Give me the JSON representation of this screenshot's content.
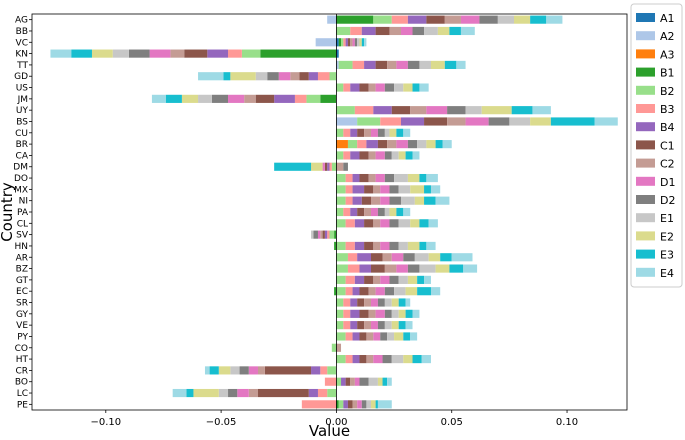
{
  "chart_data": {
    "type": "bar",
    "orientation": "horizontal",
    "stacked": true,
    "xlabel": "Value",
    "ylabel": "Country",
    "xlim": [
      -0.132,
      0.126
    ],
    "xticks": [
      -0.1,
      -0.05,
      0.0,
      0.05,
      0.1
    ],
    "xtick_labels": [
      "−0.10",
      "−0.05",
      "0.00",
      "0.05",
      "0.10"
    ],
    "zero_line": true,
    "grid": false,
    "legend_position": "outside-right",
    "categories": [
      "AG",
      "BB",
      "VC",
      "KN",
      "TT",
      "GD",
      "US",
      "JM",
      "UY",
      "BS",
      "CU",
      "BR",
      "CA",
      "DM",
      "DO",
      "MX",
      "NI",
      "PA",
      "CL",
      "SV",
      "HN",
      "AR",
      "BZ",
      "GT",
      "EC",
      "SR",
      "GY",
      "VE",
      "PY",
      "CO",
      "HT",
      "CR",
      "BO",
      "LC",
      "PE"
    ],
    "series": [
      {
        "name": "A1",
        "color": "#1f77b4",
        "values": [
          0,
          0,
          0.001,
          0.001,
          0,
          0,
          0,
          0,
          0,
          0,
          0,
          0,
          0,
          0,
          0,
          0,
          0,
          0,
          0,
          0,
          0,
          0,
          0,
          0,
          0,
          0,
          0,
          0,
          0,
          0,
          0,
          0,
          0,
          0,
          0
        ]
      },
      {
        "name": "A2",
        "color": "#aec7e8",
        "values": [
          -0.004,
          0,
          -0.009,
          0,
          0.001,
          0,
          0,
          0,
          0,
          0.009,
          0,
          0,
          0,
          0,
          0,
          0,
          0,
          0,
          0,
          0,
          0,
          0,
          0,
          0,
          0,
          0,
          0,
          0,
          0,
          0,
          0,
          0,
          0,
          0,
          0
        ]
      },
      {
        "name": "A3",
        "color": "#ff7f0e",
        "values": [
          0,
          0,
          0,
          0,
          0,
          0,
          0,
          0,
          0,
          0,
          0,
          0.005,
          0,
          0,
          0,
          0,
          0,
          0,
          0,
          0,
          0,
          0,
          0,
          0,
          0,
          0,
          0,
          0,
          0,
          0,
          0,
          0,
          0,
          0,
          0
        ]
      },
      {
        "name": "B1",
        "color": "#2ca02c",
        "values": [
          0.016,
          0,
          0.001,
          -0.033,
          0,
          0,
          0,
          -0.007,
          0,
          0,
          0,
          0,
          0,
          0,
          0,
          0,
          0,
          0,
          0,
          -0.001,
          -0.001,
          0,
          0,
          0,
          -0.001,
          0,
          0,
          0,
          0,
          0,
          0,
          0,
          0,
          0,
          0.001
        ]
      },
      {
        "name": "B2",
        "color": "#98df8a",
        "values": [
          0.008,
          0.006,
          0.001,
          -0.008,
          0.006,
          -0.003,
          0.003,
          -0.006,
          0.008,
          0.01,
          0.003,
          0.004,
          0.003,
          -0.002,
          0.004,
          0.004,
          0.004,
          0.003,
          0.004,
          -0.002,
          0.004,
          0.005,
          0.005,
          0.004,
          0.004,
          0.003,
          0.003,
          0.003,
          0.004,
          -0.002,
          0.004,
          -0.004,
          0.002,
          -0.004,
          0.002
        ]
      },
      {
        "name": "B3",
        "color": "#ff9896",
        "values": [
          0.007,
          0.005,
          0.001,
          -0.006,
          0.005,
          -0.005,
          0.003,
          -0.005,
          0.008,
          0.009,
          0.003,
          0.004,
          0.003,
          -0.001,
          0.003,
          0.003,
          0.003,
          0.003,
          0.004,
          -0.001,
          0.004,
          0.004,
          0.005,
          0.004,
          0.003,
          0.003,
          0.003,
          0.003,
          0.003,
          0,
          0.003,
          -0.003,
          -0.005,
          -0.004,
          -0.015
        ]
      },
      {
        "name": "B4",
        "color": "#9467bd",
        "values": [
          0.008,
          0.006,
          0.001,
          -0.009,
          0.005,
          -0.004,
          0.004,
          -0.009,
          0.008,
          0.01,
          0.003,
          0.005,
          0.004,
          -0.001,
          0.003,
          0.005,
          0.004,
          0.003,
          0.004,
          -0.001,
          0.004,
          0.006,
          0.005,
          0.004,
          0.003,
          0.003,
          0.004,
          0.003,
          0.003,
          0,
          0.003,
          -0.004,
          0.002,
          -0.004,
          0.002
        ]
      },
      {
        "name": "C1",
        "color": "#8c564b",
        "values": [
          0.008,
          0.006,
          0.001,
          -0.01,
          0.005,
          -0.004,
          0.004,
          -0.008,
          0.008,
          0.01,
          0.003,
          0.004,
          0.004,
          -0.001,
          0.004,
          0.004,
          0.004,
          0.003,
          0.004,
          -0.001,
          0.004,
          0.005,
          0.006,
          0.004,
          0.004,
          0.003,
          0.004,
          0.003,
          0.003,
          0,
          0.003,
          -0.02,
          0.002,
          -0.022,
          0.002
        ]
      },
      {
        "name": "C2",
        "color": "#c49c94",
        "values": [
          0.007,
          0.005,
          0.001,
          -0.006,
          0.004,
          -0.004,
          0.003,
          -0.005,
          0.007,
          0.008,
          0.003,
          0.004,
          0.003,
          0.003,
          0.003,
          0.003,
          0.004,
          0.003,
          0.003,
          -0.001,
          0.003,
          0.004,
          0.005,
          0.003,
          0.003,
          0.003,
          0.003,
          0.003,
          0.003,
          0.002,
          0.003,
          -0.003,
          0.002,
          -0.004,
          0.002
        ]
      },
      {
        "name": "D1",
        "color": "#e377c2",
        "values": [
          0.008,
          0.005,
          0.001,
          -0.009,
          0.005,
          -0.005,
          0.004,
          -0.007,
          0.009,
          0.01,
          0.003,
          0.005,
          0.004,
          -0.001,
          0.004,
          0.004,
          0.004,
          0.003,
          0.004,
          -0.001,
          0.004,
          0.005,
          0.005,
          0.004,
          0.004,
          0.003,
          0.004,
          0.003,
          0.003,
          0,
          0.004,
          -0.004,
          0.002,
          -0.005,
          0.002
        ]
      },
      {
        "name": "D2",
        "color": "#7f7f7f",
        "values": [
          0.008,
          0.005,
          0.001,
          -0.009,
          0.005,
          -0.005,
          0.004,
          -0.007,
          0.008,
          0.009,
          0.003,
          0.004,
          0.003,
          0.002,
          0.004,
          0.004,
          0.005,
          0.003,
          0.004,
          -0.002,
          0.004,
          0.005,
          0.005,
          0.004,
          0.004,
          0.003,
          0.003,
          0.003,
          0.003,
          0,
          0.004,
          -0.004,
          0.004,
          -0.004,
          0.002
        ]
      },
      {
        "name": "E1",
        "color": "#c7c7c7",
        "values": [
          0.007,
          0.006,
          0.001,
          -0.007,
          0.005,
          -0.005,
          0.004,
          -0.006,
          0.007,
          0.009,
          0.002,
          0.004,
          0.003,
          0,
          0.006,
          0.005,
          0.006,
          0.002,
          0.005,
          -0.001,
          0.004,
          0.006,
          0.007,
          0.004,
          0.005,
          0.003,
          0.003,
          0.003,
          0.003,
          0,
          0.005,
          -0.004,
          0.004,
          -0.004,
          0.002
        ]
      },
      {
        "name": "E2",
        "color": "#dbdb8d",
        "values": [
          0.007,
          0.005,
          0.001,
          -0.009,
          0.006,
          -0.011,
          0.004,
          -0.007,
          0.013,
          0.009,
          0.003,
          0.004,
          0.003,
          -0.005,
          0.005,
          0.006,
          0.004,
          0.003,
          0.004,
          0,
          0.005,
          0.005,
          0.006,
          0.004,
          0.005,
          0.003,
          0.003,
          0.003,
          0.004,
          0,
          0.004,
          -0.005,
          0.002,
          -0.011,
          0.002
        ]
      },
      {
        "name": "E3",
        "color": "#17becf",
        "values": [
          0.007,
          0.005,
          0.001,
          -0.009,
          0.005,
          -0.003,
          0.003,
          -0.007,
          0.009,
          0.019,
          0.003,
          0.003,
          0.003,
          -0.016,
          0.003,
          0.003,
          0.005,
          0.003,
          0.004,
          0,
          0.003,
          0.005,
          0.006,
          0.003,
          0.006,
          0.003,
          0.003,
          0.003,
          0.003,
          0,
          0.004,
          -0.004,
          0.002,
          -0.003,
          0.001
        ]
      },
      {
        "name": "E4",
        "color": "#9edae5",
        "values": [
          0.007,
          0.006,
          0.001,
          -0.009,
          0.004,
          -0.011,
          0.004,
          -0.006,
          0.008,
          0.01,
          0.003,
          0.004,
          0.003,
          0,
          0.005,
          0.004,
          0.006,
          0.003,
          0.004,
          0,
          0.004,
          0.009,
          0.006,
          0.003,
          0.004,
          0.002,
          0.003,
          0.003,
          0.003,
          0,
          0.004,
          -0.002,
          0.002,
          -0.006,
          0.006
        ]
      }
    ]
  }
}
